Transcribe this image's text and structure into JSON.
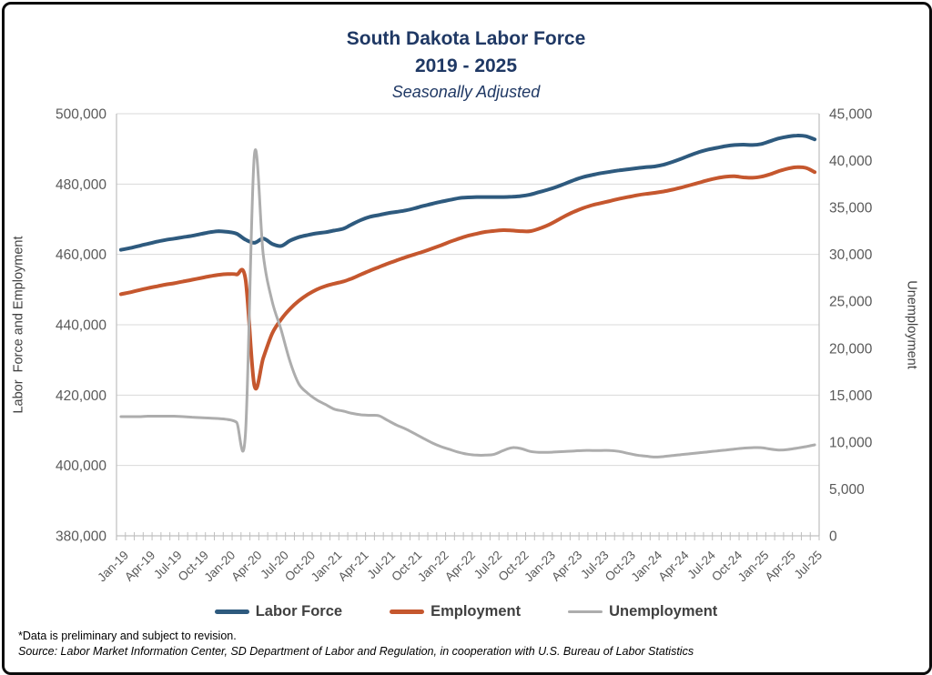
{
  "title": {
    "line1": "South Dakota Labor Force",
    "line2": "2019 - 2025",
    "line3": "Seasonally Adjusted",
    "color": "#1F3864"
  },
  "footnotes": {
    "preliminary": "*Data is preliminary and subject to revision.",
    "source": "Source: Labor Market Information Center, SD Department of Labor and Regulation, in cooperation with U.S. Bureau of Labor Statistics"
  },
  "colors": {
    "grid": "#D9D9D9",
    "axis_line": "#BFBFBF",
    "tick_text": "#595959",
    "legend_text": "#404040"
  },
  "chart_data": {
    "type": "line",
    "title": "South Dakota Labor Force 2019 - 2025, Seasonally Adjusted",
    "grid": "horizontal",
    "legend_position": "bottom",
    "x": {
      "months_count": 79,
      "first_month": "Jan-19",
      "last_month": "Jul-25",
      "tick_every": 3,
      "tick_labels": [
        "Jan-19",
        "Apr-19",
        "Jul-19",
        "Oct-19",
        "Jan-20",
        "Apr-20",
        "Jul-20",
        "Oct-20",
        "Jan-21",
        "Apr-21",
        "Jul-21",
        "Oct-21",
        "Jan-22",
        "Apr-22",
        "Jul-22",
        "Oct-22",
        "Jan-23",
        "Apr-23",
        "Jul-23",
        "Oct-23",
        "Jan-24",
        "Apr-24",
        "Jul-24",
        "Oct-24",
        "Jan-25",
        "Apr-25",
        "Jul-25"
      ]
    },
    "left_axis": {
      "title": "Labor  Force and Employment",
      "min": 380000,
      "max": 500000,
      "ticks": [
        {
          "label": "380,000",
          "value": 380000
        },
        {
          "label": "400,000",
          "value": 400000
        },
        {
          "label": "420,000",
          "value": 420000
        },
        {
          "label": "440,000",
          "value": 440000
        },
        {
          "label": "460,000",
          "value": 460000
        },
        {
          "label": "480,000",
          "value": 480000
        },
        {
          "label": "500,000",
          "value": 500000
        }
      ]
    },
    "right_axis": {
      "title": "Unemployment",
      "min": 0,
      "max": 45000,
      "ticks": [
        {
          "label": "0",
          "value": 0
        },
        {
          "label": "5,000",
          "value": 5000
        },
        {
          "label": "10,000",
          "value": 10000
        },
        {
          "label": "15,000",
          "value": 15000
        },
        {
          "label": "20,000",
          "value": 20000
        },
        {
          "label": "25,000",
          "value": 25000
        },
        {
          "label": "30,000",
          "value": 30000
        },
        {
          "label": "35,000",
          "value": 35000
        },
        {
          "label": "40,000",
          "value": 40000
        },
        {
          "label": "45,000",
          "value": 45000
        }
      ]
    },
    "series": [
      {
        "name": "Labor Force",
        "axis": "left",
        "color": "#2E5A7E",
        "width": 4,
        "values": [
          461300,
          461800,
          462400,
          463000,
          463600,
          464100,
          464500,
          464900,
          465300,
          465800,
          466300,
          466600,
          466400,
          465900,
          464200,
          463300,
          464500,
          463000,
          462400,
          463900,
          464900,
          465500,
          466000,
          466300,
          466800,
          467300,
          468600,
          469800,
          470700,
          471200,
          471700,
          472100,
          472500,
          473100,
          473800,
          474400,
          475000,
          475500,
          476000,
          476200,
          476300,
          476300,
          476300,
          476300,
          476400,
          476600,
          477000,
          477700,
          478400,
          479200,
          480200,
          481200,
          482000,
          482600,
          483100,
          483500,
          483900,
          484200,
          484500,
          484800,
          485000,
          485500,
          486300,
          487200,
          488200,
          489100,
          489800,
          490300,
          490800,
          491100,
          491200,
          491100,
          491400,
          492200,
          493000,
          493500,
          493800,
          493600,
          492700
        ]
      },
      {
        "name": "Employment",
        "axis": "left",
        "color": "#C5572E",
        "width": 4,
        "values": [
          448700,
          449200,
          449800,
          450400,
          450900,
          451400,
          451800,
          452300,
          452800,
          453300,
          453800,
          454200,
          454400,
          454300,
          453000,
          422700,
          430500,
          437500,
          441500,
          444500,
          446800,
          448600,
          450000,
          451000,
          451700,
          452300,
          453200,
          454300,
          455400,
          456400,
          457400,
          458300,
          459200,
          460000,
          460800,
          461700,
          462600,
          463600,
          464500,
          465300,
          465900,
          466400,
          466700,
          466900,
          466800,
          466600,
          466600,
          467300,
          468300,
          469600,
          471000,
          472200,
          473200,
          474000,
          474600,
          475200,
          475800,
          476300,
          476800,
          477200,
          477500,
          477900,
          478400,
          479000,
          479700,
          480400,
          481100,
          481700,
          482100,
          482200,
          481900,
          481800,
          482100,
          482800,
          483700,
          484400,
          484800,
          484600,
          483400
        ]
      },
      {
        "name": "Unemployment",
        "axis": "right",
        "color": "#ADADAD",
        "width": 3,
        "values": [
          12700,
          12700,
          12700,
          12750,
          12750,
          12750,
          12750,
          12700,
          12650,
          12600,
          12550,
          12500,
          12400,
          12100,
          10900,
          40600,
          30000,
          25000,
          22000,
          18600,
          16200,
          15200,
          14500,
          14000,
          13500,
          13300,
          13050,
          12900,
          12850,
          12800,
          12300,
          11800,
          11400,
          10900,
          10400,
          9900,
          9500,
          9200,
          8900,
          8700,
          8600,
          8600,
          8700,
          9100,
          9400,
          9300,
          9000,
          8900,
          8900,
          8950,
          9000,
          9050,
          9100,
          9100,
          9100,
          9100,
          9000,
          8800,
          8600,
          8500,
          8400,
          8450,
          8550,
          8650,
          8750,
          8850,
          8950,
          9050,
          9150,
          9250,
          9350,
          9400,
          9400,
          9250,
          9150,
          9200,
          9350,
          9500,
          9700
        ]
      }
    ]
  }
}
